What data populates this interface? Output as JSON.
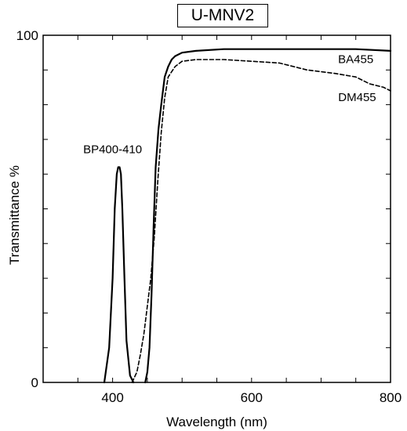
{
  "chart_data": {
    "type": "line",
    "title": "U-MNV2",
    "xlabel": "Wavelength (nm)",
    "ylabel": "Transmittance  %",
    "xlim": [
      300,
      800
    ],
    "ylim": [
      0,
      100
    ],
    "x_ticks": [
      400,
      600,
      800
    ],
    "y_ticks": [
      0,
      100
    ],
    "x_tick_labels": [
      "400",
      "600",
      "800"
    ],
    "y_tick_labels": [
      "0",
      "100"
    ],
    "grid": false,
    "series": [
      {
        "name": "BP400-410",
        "style": "solid",
        "x": [
          388,
          395,
          400,
          403,
          406,
          408,
          410,
          412,
          414,
          417,
          420,
          425,
          430
        ],
        "y": [
          0,
          10,
          30,
          50,
          60,
          62,
          62,
          60,
          50,
          30,
          12,
          2,
          0
        ]
      },
      {
        "name": "BA455",
        "style": "solid",
        "x": [
          447,
          450,
          453,
          456,
          459,
          462,
          466,
          470,
          475,
          480,
          485,
          490,
          500,
          520,
          560,
          600,
          650,
          700,
          750,
          800
        ],
        "y": [
          0,
          3,
          10,
          25,
          45,
          62,
          73,
          80,
          88,
          91,
          93,
          94,
          95,
          95.5,
          96,
          96,
          96,
          96,
          96,
          95.5
        ]
      },
      {
        "name": "DM455",
        "style": "dashed",
        "x": [
          428,
          435,
          440,
          445,
          450,
          455,
          460,
          465,
          470,
          475,
          480,
          490,
          500,
          520,
          560,
          600,
          640,
          680,
          720,
          750,
          770,
          790,
          800
        ],
        "y": [
          0,
          3,
          8,
          14,
          22,
          30,
          42,
          58,
          72,
          82,
          88,
          91,
          92.5,
          93,
          93,
          92.5,
          92,
          90,
          89,
          88,
          86,
          85,
          84
        ]
      }
    ],
    "annotations": [
      {
        "text": "BP400-410",
        "x": 400,
        "y": 66
      },
      {
        "text": "BA455",
        "x": 750,
        "y": 92
      },
      {
        "text": "DM455",
        "x": 752,
        "y": 81
      }
    ]
  }
}
